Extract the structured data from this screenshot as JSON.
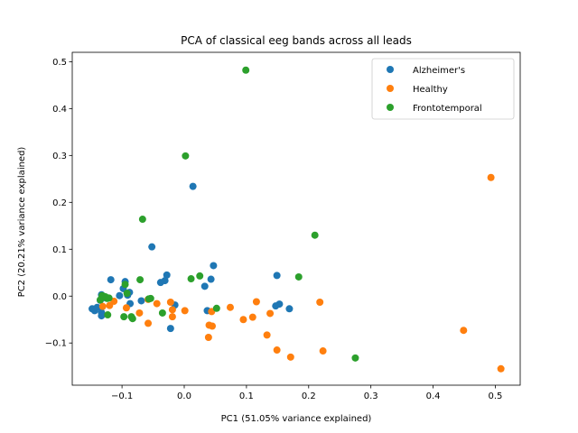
{
  "chart_data": {
    "type": "scatter",
    "title": "PCA of classical eeg bands across all leads",
    "xlabel": "PC1 (51.05% variance explained)",
    "ylabel": "PC2 (20.21% variance explained)",
    "xlim": [
      -0.18,
      0.54
    ],
    "ylim": [
      -0.19,
      0.52
    ],
    "xticks": [
      -0.1,
      0.0,
      0.1,
      0.2,
      0.3,
      0.4,
      0.5
    ],
    "xtick_labels": [
      "−0.1",
      "0.0",
      "0.1",
      "0.2",
      "0.3",
      "0.4",
      "0.5"
    ],
    "yticks": [
      -0.1,
      0.0,
      0.1,
      0.2,
      0.3,
      0.4,
      0.5
    ],
    "ytick_labels": [
      "−0.1",
      "0.0",
      "0.1",
      "0.2",
      "0.3",
      "0.4",
      "0.5"
    ],
    "grid": false,
    "legend_position": "top-right",
    "series": [
      {
        "name": "Alzheimer's",
        "color": "#1f77b4",
        "points": [
          [
            0.014,
            0.234
          ],
          [
            -0.052,
            0.105
          ],
          [
            0.047,
            0.065
          ],
          [
            -0.028,
            0.045
          ],
          [
            0.149,
            0.044
          ],
          [
            -0.118,
            0.035
          ],
          [
            0.043,
            0.036
          ],
          [
            -0.095,
            0.031
          ],
          [
            -0.031,
            0.033
          ],
          [
            -0.038,
            0.029
          ],
          [
            0.033,
            0.021
          ],
          [
            -0.098,
            0.016
          ],
          [
            -0.088,
            0.008
          ],
          [
            -0.104,
            0.001
          ],
          [
            -0.128,
            -0.002
          ],
          [
            -0.133,
            0.003
          ],
          [
            -0.135,
            -0.009
          ],
          [
            -0.069,
            -0.01
          ],
          [
            -0.087,
            -0.016
          ],
          [
            -0.015,
            -0.019
          ],
          [
            0.153,
            -0.017
          ],
          [
            0.147,
            -0.021
          ],
          [
            0.169,
            -0.027
          ],
          [
            0.037,
            -0.031
          ],
          [
            -0.148,
            -0.027
          ],
          [
            -0.144,
            -0.031
          ],
          [
            -0.14,
            -0.024
          ],
          [
            -0.133,
            -0.035
          ],
          [
            -0.133,
            -0.042
          ],
          [
            -0.022,
            -0.069
          ],
          [
            -0.126,
            -0.004
          ],
          [
            -0.091,
            0.002
          ]
        ]
      },
      {
        "name": "Healthy",
        "color": "#ff7f0e",
        "points": [
          [
            0.493,
            0.253
          ],
          [
            -0.113,
            -0.011
          ],
          [
            -0.022,
            -0.013
          ],
          [
            0.116,
            -0.012
          ],
          [
            0.218,
            -0.013
          ],
          [
            -0.058,
            -0.007
          ],
          [
            -0.044,
            -0.016
          ],
          [
            -0.12,
            -0.02
          ],
          [
            -0.131,
            -0.022
          ],
          [
            -0.093,
            -0.025
          ],
          [
            0.074,
            -0.024
          ],
          [
            -0.019,
            -0.029
          ],
          [
            0.001,
            -0.031
          ],
          [
            0.044,
            -0.033
          ],
          [
            -0.072,
            -0.036
          ],
          [
            0.138,
            -0.037
          ],
          [
            -0.019,
            -0.044
          ],
          [
            0.11,
            -0.045
          ],
          [
            0.095,
            -0.05
          ],
          [
            -0.058,
            -0.058
          ],
          [
            0.04,
            -0.062
          ],
          [
            0.045,
            -0.064
          ],
          [
            0.449,
            -0.073
          ],
          [
            0.133,
            -0.083
          ],
          [
            0.039,
            -0.088
          ],
          [
            0.149,
            -0.115
          ],
          [
            0.223,
            -0.117
          ],
          [
            0.171,
            -0.13
          ],
          [
            0.509,
            -0.155
          ]
        ]
      },
      {
        "name": "Frontotemporal",
        "color": "#2ca02c",
        "points": [
          [
            0.099,
            0.482
          ],
          [
            0.002,
            0.299
          ],
          [
            -0.067,
            0.164
          ],
          [
            0.21,
            0.13
          ],
          [
            0.025,
            0.043
          ],
          [
            0.184,
            0.041
          ],
          [
            0.011,
            0.037
          ],
          [
            -0.071,
            0.035
          ],
          [
            -0.095,
            0.025
          ],
          [
            -0.092,
            0.006
          ],
          [
            -0.132,
            0.001
          ],
          [
            -0.126,
            -0.002
          ],
          [
            -0.054,
            -0.005
          ],
          [
            -0.057,
            -0.006
          ],
          [
            -0.124,
            -0.005
          ],
          [
            -0.135,
            -0.008
          ],
          [
            0.052,
            -0.026
          ],
          [
            -0.123,
            -0.04
          ],
          [
            -0.035,
            -0.036
          ],
          [
            -0.097,
            -0.044
          ],
          [
            -0.085,
            -0.044
          ],
          [
            -0.083,
            -0.048
          ],
          [
            0.275,
            -0.132
          ],
          [
            -0.128,
            -0.001
          ],
          [
            -0.121,
            -0.004
          ]
        ]
      }
    ]
  }
}
